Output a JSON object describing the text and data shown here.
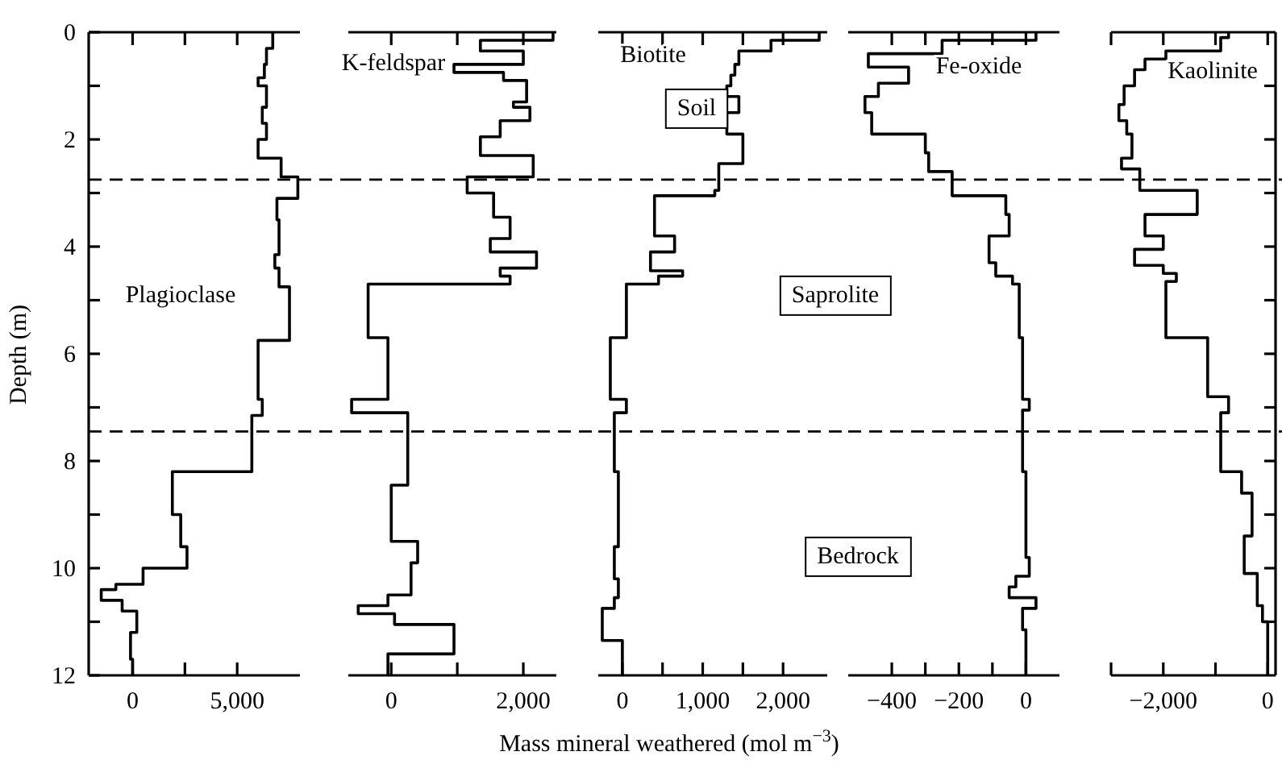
{
  "chart_data": [
    {
      "type": "line",
      "ylabel": "Depth (m)",
      "xlim": [
        -2100,
        8000
      ],
      "xticks": [
        {
          "value": 0,
          "label": "0"
        },
        {
          "value": 2500,
          "label": null
        },
        {
          "value": 5000,
          "label": "5,000"
        }
      ],
      "ylim": [
        12,
        0
      ],
      "yticks": [
        0,
        {
          "value": 1,
          "label": null
        },
        2,
        {
          "value": 3,
          "label": null
        },
        4,
        {
          "value": 5,
          "label": null
        },
        6,
        {
          "value": 7,
          "label": null
        },
        8,
        {
          "value": 9,
          "label": null
        },
        10,
        {
          "value": 11,
          "label": null
        },
        12
      ],
      "ref_lines": [
        {
          "axis": "y",
          "value": 2.75,
          "line_style": "dashed"
        },
        {
          "axis": "y",
          "value": 7.45,
          "line_style": "dashed"
        }
      ],
      "series": [
        {
          "name": "Plagioclase",
          "color": "#000000",
          "x": [
            6700,
            6700,
            6400,
            6400,
            6300,
            6300,
            6000,
            6000,
            6400,
            6400,
            6200,
            6200,
            6400,
            6400,
            6000,
            6000,
            7100,
            7100,
            7900,
            7900,
            6900,
            6900,
            7000,
            7000,
            6800,
            6800,
            7000,
            7000,
            7500,
            7500,
            6000,
            6000,
            6200,
            6200,
            5700,
            5700,
            1900,
            1900,
            2300,
            2300,
            2600,
            2600,
            500,
            500,
            -800,
            -800,
            -1500,
            -1500,
            -500,
            -500,
            200,
            200,
            -100,
            -100,
            0,
            0
          ],
          "values": [
            0,
            0.3,
            0.3,
            0.6,
            0.6,
            0.85,
            0.85,
            1,
            1,
            1.4,
            1.4,
            1.7,
            1.7,
            2,
            2,
            2.35,
            2.35,
            2.7,
            2.7,
            3.1,
            3.1,
            3.5,
            3.5,
            4.15,
            4.15,
            4.4,
            4.4,
            4.75,
            4.75,
            5.75,
            5.75,
            6.85,
            6.85,
            7.15,
            7.15,
            8.2,
            8.2,
            9,
            9,
            9.6,
            9.6,
            10,
            10,
            10.3,
            10.3,
            10.4,
            10.4,
            10.6,
            10.6,
            10.8,
            10.8,
            11.2,
            11.2,
            11.7,
            11.7,
            12
          ]
        }
      ]
    },
    {
      "type": "line",
      "xlim": [
        -650,
        2500
      ],
      "xticks": [
        {
          "value": 0,
          "label": "0"
        },
        {
          "value": 1000,
          "label": null
        },
        {
          "value": 2000,
          "label": "2,000"
        }
      ],
      "ylim": [
        12,
        0
      ],
      "tick_labels": "x",
      "ref_lines": [
        {
          "axis": "y",
          "value": 2.75,
          "line_style": "dashed"
        },
        {
          "axis": "y",
          "value": 7.45,
          "line_style": "dashed"
        }
      ],
      "series": [
        {
          "name": "K-feldspar",
          "color": "#000000",
          "x": [
            2450,
            2450,
            1350,
            1350,
            2000,
            2000,
            950,
            950,
            1700,
            1700,
            2050,
            2050,
            1850,
            1850,
            2100,
            2100,
            1650,
            1650,
            1350,
            1350,
            2150,
            2150,
            1150,
            1150,
            1550,
            1550,
            1800,
            1800,
            1500,
            1500,
            2200,
            2200,
            1650,
            1650,
            1800,
            1800,
            -350,
            -350,
            -50,
            -50,
            -600,
            -600,
            250,
            250,
            0,
            0,
            400,
            400,
            300,
            300,
            -50,
            -50,
            -500,
            -500,
            50,
            50,
            950,
            950,
            -50,
            -50
          ],
          "values": [
            0,
            0.15,
            0.15,
            0.35,
            0.35,
            0.6,
            0.6,
            0.75,
            0.75,
            0.9,
            0.9,
            1.3,
            1.3,
            1.4,
            1.4,
            1.65,
            1.65,
            1.95,
            1.95,
            2.3,
            2.3,
            2.7,
            2.7,
            3,
            3,
            3.45,
            3.45,
            3.85,
            3.85,
            4.1,
            4.1,
            4.4,
            4.4,
            4.55,
            4.55,
            4.7,
            4.7,
            5.7,
            5.7,
            6.85,
            6.85,
            7.1,
            7.1,
            8.45,
            8.45,
            9.5,
            9.5,
            9.9,
            9.9,
            10.5,
            10.5,
            10.7,
            10.7,
            10.85,
            10.85,
            11.05,
            11.05,
            11.6,
            11.6,
            12
          ]
        }
      ]
    },
    {
      "type": "line",
      "xlabel": "Mass mineral weathered (mol m$^{−3}$)",
      "xlim": [
        -300,
        2550
      ],
      "xticks": [
        {
          "value": 0,
          "label": "0"
        },
        {
          "value": 500,
          "label": null
        },
        {
          "value": 1000,
          "label": "1,000"
        },
        {
          "value": 1500,
          "label": null
        },
        {
          "value": 2000,
          "label": "2,000"
        }
      ],
      "ylim": [
        12,
        0
      ],
      "tick_labels": "x",
      "annotations": [
        "Soil",
        "Saprolite",
        "Bedrock"
      ],
      "ref_lines": [
        {
          "axis": "y",
          "value": 2.75,
          "line_style": "dashed"
        },
        {
          "axis": "y",
          "value": 7.45,
          "line_style": "dashed"
        }
      ],
      "series": [
        {
          "name": "Biotite",
          "color": "#000000",
          "x": [
            2450,
            2450,
            1850,
            1850,
            1450,
            1450,
            1400,
            1400,
            1350,
            1350,
            1300,
            1300,
            1450,
            1450,
            1300,
            1300,
            1500,
            1500,
            1200,
            1200,
            1150,
            1150,
            400,
            400,
            650,
            650,
            350,
            350,
            750,
            750,
            450,
            450,
            50,
            50,
            -150,
            -150,
            50,
            50,
            -100,
            -100,
            -50,
            -50,
            -100,
            -100,
            -50,
            -50,
            -100,
            -100,
            -250,
            -250,
            0,
            0
          ],
          "values": [
            0,
            0.15,
            0.15,
            0.35,
            0.35,
            0.6,
            0.6,
            0.8,
            0.8,
            1,
            1,
            1.2,
            1.2,
            1.5,
            1.5,
            1.9,
            1.9,
            2.45,
            2.45,
            2.95,
            2.95,
            3.05,
            3.05,
            3.8,
            3.8,
            4.1,
            4.1,
            4.45,
            4.45,
            4.55,
            4.55,
            4.7,
            4.7,
            5.7,
            5.7,
            6.85,
            6.85,
            7.1,
            7.1,
            8.2,
            8.2,
            9.6,
            9.6,
            10.2,
            10.2,
            10.55,
            10.55,
            10.75,
            10.75,
            11.35,
            11.35,
            12
          ]
        }
      ]
    },
    {
      "type": "line",
      "xlim": [
        -530,
        100
      ],
      "xticks": [
        {
          "value": -400,
          "label": "−400"
        },
        {
          "value": -300,
          "label": null
        },
        {
          "value": -200,
          "label": "−200"
        },
        {
          "value": -100,
          "label": null
        },
        {
          "value": 0,
          "label": "0"
        }
      ],
      "ylim": [
        12,
        0
      ],
      "tick_labels": "x",
      "ref_lines": [
        {
          "axis": "y",
          "value": 2.75,
          "line_style": "dashed"
        },
        {
          "axis": "y",
          "value": 7.45,
          "line_style": "dashed"
        }
      ],
      "series": [
        {
          "name": "Fe-oxide",
          "color": "#000000",
          "x": [
            30,
            30,
            -250,
            -250,
            -470,
            -470,
            -350,
            -350,
            -440,
            -440,
            -480,
            -480,
            -460,
            -460,
            -300,
            -300,
            -290,
            -290,
            -220,
            -220,
            -60,
            -60,
            -50,
            -50,
            -110,
            -110,
            -90,
            -90,
            -40,
            -40,
            -20,
            -20,
            -10,
            -10,
            10,
            10,
            -10,
            -10,
            0,
            0,
            10,
            10,
            -30,
            -30,
            -50,
            -50,
            30,
            30,
            -10,
            -10,
            0,
            0
          ],
          "values": [
            0,
            0.15,
            0.15,
            0.4,
            0.4,
            0.65,
            0.65,
            0.95,
            0.95,
            1.2,
            1.2,
            1.5,
            1.5,
            1.9,
            1.9,
            2.25,
            2.25,
            2.6,
            2.6,
            3.05,
            3.05,
            3.4,
            3.4,
            3.8,
            3.8,
            4.3,
            4.3,
            4.55,
            4.55,
            4.7,
            4.7,
            5.7,
            5.7,
            6.85,
            6.85,
            7.05,
            7.05,
            8.2,
            8.2,
            9.8,
            9.8,
            10.15,
            10.15,
            10.35,
            10.35,
            10.55,
            10.55,
            10.75,
            10.75,
            11.15,
            11.15,
            12
          ]
        }
      ]
    },
    {
      "type": "line",
      "xlim": [
        -3000,
        150
      ],
      "xticks": [
        {
          "value": -3000,
          "label": null
        },
        {
          "value": -2000,
          "label": "−2,000"
        },
        {
          "value": -1000,
          "label": null
        },
        {
          "value": 0,
          "label": "0"
        }
      ],
      "ylim": [
        12,
        0
      ],
      "yticks": [
        {
          "value": 1,
          "label": null
        },
        {
          "value": 2,
          "label": null
        },
        {
          "value": 3,
          "label": null
        },
        {
          "value": 4,
          "label": null
        },
        {
          "value": 5,
          "label": null
        },
        {
          "value": 6,
          "label": null
        },
        {
          "value": 7,
          "label": null
        },
        {
          "value": 8,
          "label": null
        },
        {
          "value": 9,
          "label": null
        },
        {
          "value": 10,
          "label": null
        },
        {
          "value": 11,
          "label": null
        }
      ],
      "tick_labels": "x",
      "ref_lines": [
        {
          "axis": "y",
          "value": 2.75,
          "line_style": "dashed"
        },
        {
          "axis": "y",
          "value": 7.45,
          "line_style": "dashed"
        }
      ],
      "series": [
        {
          "name": "Kaolinite",
          "color": "#000000",
          "x": [
            -750,
            -750,
            -900,
            -900,
            -1950,
            -1950,
            -2350,
            -2350,
            -2550,
            -2550,
            -2750,
            -2750,
            -2850,
            -2850,
            -2700,
            -2700,
            -2600,
            -2600,
            -2800,
            -2800,
            -2450,
            -2450,
            -1350,
            -1350,
            -2350,
            -2350,
            -2000,
            -2000,
            -2550,
            -2550,
            -2000,
            -2000,
            -1750,
            -1750,
            -1950,
            -1950,
            -1150,
            -1150,
            -750,
            -750,
            -900,
            -900,
            -500,
            -500,
            -300,
            -300,
            -450,
            -450,
            -200,
            -200,
            -100,
            -100,
            0,
            0
          ],
          "values": [
            0,
            0.1,
            0.1,
            0.35,
            0.35,
            0.5,
            0.5,
            0.7,
            0.7,
            1,
            1,
            1.35,
            1.35,
            1.65,
            1.65,
            1.9,
            1.9,
            2.35,
            2.35,
            2.55,
            2.55,
            2.95,
            2.95,
            3.4,
            3.4,
            3.8,
            3.8,
            4.05,
            4.05,
            4.35,
            4.35,
            4.5,
            4.5,
            4.65,
            4.65,
            5.7,
            5.7,
            6.8,
            6.8,
            7.1,
            7.1,
            8.2,
            8.2,
            8.6,
            8.6,
            9.4,
            9.4,
            10.1,
            10.1,
            10.7,
            10.7,
            11,
            11,
            12
          ]
        }
      ]
    }
  ]
}
